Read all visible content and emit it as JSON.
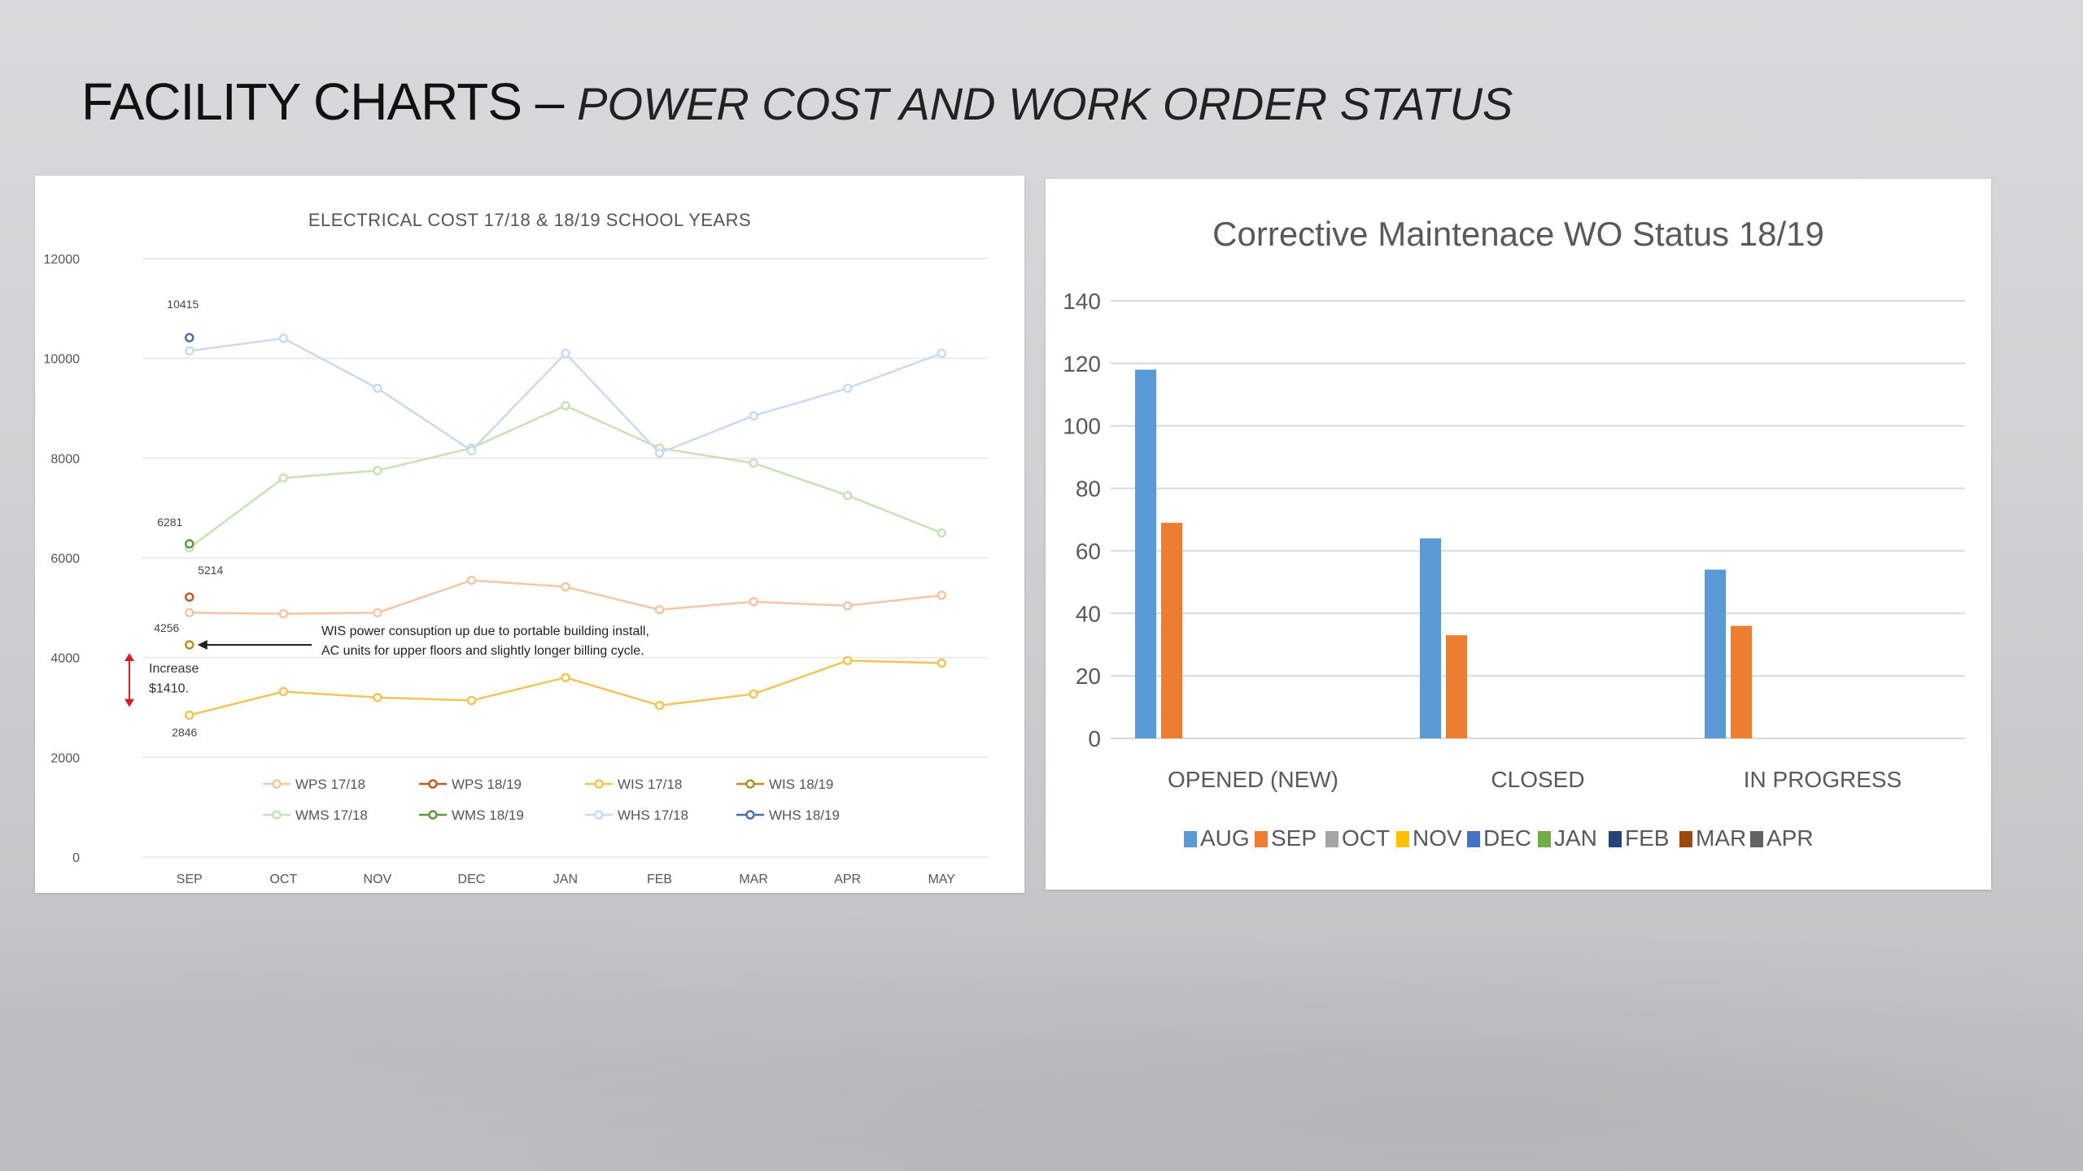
{
  "slide": {
    "title_main": "FACILITY CHARTS – ",
    "title_sub": "POWER COST AND WORK ORDER STATUS"
  },
  "chart_data": [
    {
      "type": "line",
      "title": "ELECTRICAL COST  17/18  & 18/19 SCHOOL YEARS",
      "categories": [
        "SEP",
        "OCT",
        "NOV",
        "DEC",
        "JAN",
        "FEB",
        "MAR",
        "APR",
        "MAY"
      ],
      "ylim": [
        0,
        12000
      ],
      "yticks": [
        0,
        2000,
        4000,
        6000,
        8000,
        10000,
        12000
      ],
      "grid": true,
      "legend_position": "bottom",
      "series": [
        {
          "name": "WPS 17/18",
          "color": "#f5c6a5",
          "dash": false,
          "values": [
            4900,
            4880,
            4900,
            5550,
            5420,
            4960,
            5120,
            5040,
            5250
          ]
        },
        {
          "name": "WPS 18/19",
          "color": "#c05a2a",
          "dash": false,
          "values": [
            5214,
            null,
            null,
            null,
            null,
            null,
            null,
            null,
            null
          ]
        },
        {
          "name": "WIS 17/18",
          "color": "#f2c45a",
          "dash": false,
          "values": [
            2846,
            3320,
            3200,
            3140,
            3600,
            3040,
            3270,
            3940,
            3890
          ]
        },
        {
          "name": "WIS 18/19",
          "color": "#b89020",
          "dash": false,
          "values": [
            4256,
            null,
            null,
            null,
            null,
            null,
            null,
            null,
            null
          ]
        },
        {
          "name": "WMS 17/18",
          "color": "#c8e2b6",
          "dash": false,
          "values": [
            6200,
            7600,
            7750,
            8200,
            9050,
            8200,
            7900,
            7250,
            6500
          ]
        },
        {
          "name": "WMS 18/19",
          "color": "#5a9a40",
          "dash": false,
          "values": [
            6281,
            null,
            null,
            null,
            null,
            null,
            null,
            null,
            null
          ]
        },
        {
          "name": "WHS 17/18",
          "color": "#cbdaf0",
          "dash": false,
          "values": [
            10150,
            10400,
            9400,
            8150,
            10100,
            8100,
            8850,
            9400,
            10100
          ]
        },
        {
          "name": "WHS 18/19",
          "color": "#4a6fb0",
          "dash": false,
          "values": [
            10415,
            null,
            null,
            null,
            null,
            null,
            null,
            null,
            null
          ]
        }
      ],
      "point_labels": [
        {
          "text": "10415",
          "category": "SEP",
          "value": 10415
        },
        {
          "text": "6281",
          "category": "SEP",
          "value": 6281
        },
        {
          "text": "5214",
          "category": "SEP",
          "value": 5214
        },
        {
          "text": "4256",
          "category": "SEP",
          "value": 4256
        },
        {
          "text": "2846",
          "category": "SEP",
          "value": 2846
        }
      ],
      "annotations": {
        "note_line1": "WIS power consuption up due to  portable building install,",
        "note_line2": "AC units for upper floors and  slightly longer billing cycle.",
        "increase_label": "Increase",
        "increase_value": "$1410."
      }
    },
    {
      "type": "bar",
      "title": "Corrective Maintenace WO Status 18/19",
      "categories": [
        "OPENED (NEW)",
        "CLOSED",
        "IN PROGRESS"
      ],
      "ylim": [
        0,
        140
      ],
      "yticks": [
        0,
        20,
        40,
        60,
        80,
        100,
        120,
        140
      ],
      "grid": true,
      "legend_position": "bottom",
      "series": [
        {
          "name": "AUG",
          "color": "#5b9bd5",
          "values": [
            118,
            64,
            54
          ]
        },
        {
          "name": "SEP",
          "color": "#ed7d31",
          "values": [
            69,
            33,
            36
          ]
        },
        {
          "name": "OCT",
          "color": "#a5a5a5",
          "values": [
            null,
            null,
            null
          ]
        },
        {
          "name": "NOV",
          "color": "#ffc000",
          "values": [
            null,
            null,
            null
          ]
        },
        {
          "name": "DEC",
          "color": "#4472c4",
          "values": [
            null,
            null,
            null
          ]
        },
        {
          "name": "JAN",
          "color": "#70ad47",
          "values": [
            null,
            null,
            null
          ]
        },
        {
          "name": "FEB",
          "color": "#264478",
          "values": [
            null,
            null,
            null
          ]
        },
        {
          "name": "MAR",
          "color": "#9e480e",
          "values": [
            null,
            null,
            null
          ]
        },
        {
          "name": "APR",
          "color": "#636363",
          "values": [
            null,
            null,
            null
          ]
        }
      ]
    }
  ]
}
